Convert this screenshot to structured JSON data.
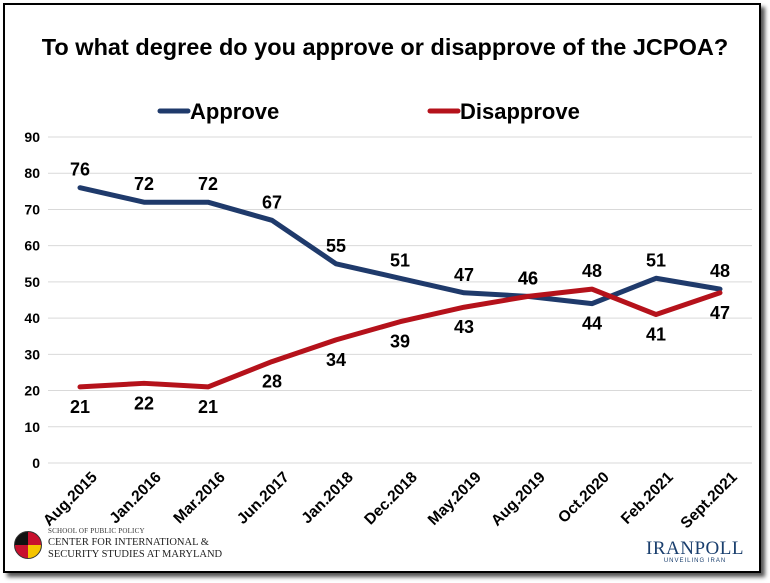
{
  "chart_data": {
    "type": "line",
    "title": "To what degree do you approve or disapprove of the JCPOA?",
    "categories": [
      "Aug.2015",
      "Jan.2016",
      "Mar.2016",
      "Jun.2017",
      "Jan.2018",
      "Dec.2018",
      "May.2019",
      "Aug.2019",
      "Oct.2020",
      "Feb.2021",
      "Sept.2021"
    ],
    "series": [
      {
        "name": "Approve",
        "values": [
          76,
          72,
          72,
          67,
          55,
          51,
          47,
          46,
          44,
          51,
          48
        ],
        "labels": [
          "76",
          "72",
          "72",
          "67",
          "55",
          "51",
          "47",
          "46",
          "44",
          "51",
          "48"
        ],
        "color": "#1f3a6b"
      },
      {
        "name": "Disapprove",
        "values": [
          21,
          22,
          21,
          28,
          34,
          39,
          43,
          46,
          48,
          41,
          47
        ],
        "labels": [
          "21",
          "22",
          "21",
          "28",
          "34",
          "39",
          "43",
          "46",
          "48",
          "41",
          "47"
        ],
        "color": "#b5121b"
      }
    ],
    "ylim": [
      0,
      90
    ],
    "yticks": [
      0,
      10,
      20,
      30,
      40,
      50,
      60,
      70,
      80,
      90
    ],
    "grid": true,
    "legend_position": "top"
  },
  "logos": {
    "left": {
      "line1": "SCHOOL OF PUBLIC POLICY",
      "line2": "CENTER FOR INTERNATIONAL &",
      "line3": "SECURITY STUDIES AT MARYLAND"
    },
    "right": {
      "name": "IRANPOLL",
      "tagline": "UNVEILING IRAN"
    }
  },
  "colors": {
    "approve": "#1f3a6b",
    "disapprove": "#b5121b",
    "grid": "#d9d9d9"
  }
}
